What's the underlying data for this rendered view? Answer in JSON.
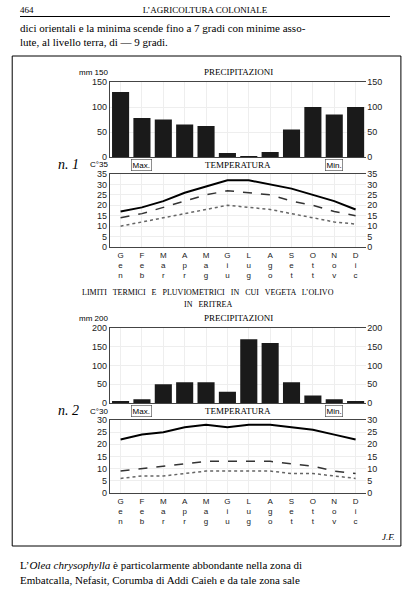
{
  "annotations": [
    "464",
    "L’AGRICOLTURA COLONIALE",
    "dici orientali e la minima scende fino a 7 gradi con minime asso-\nlute, al livello terra, di — 9 gradi.",
    "LIMITI   TERMICI   E   PLUVIOMETRICI   IN   CUI   VEGETA   L’OLIVO",
    "IN   ERITREA",
    "J.F.",
    "L’",
    "Olea chrysophylla",
    " è particolarmente abbondante nella zona di",
    "Embatcalla, Nefasit, Corumba di Addi Caieh e da tale zona sale"
  ],
  "chart_data": [
    {
      "type": "bar",
      "title": "PRECIPITAZIONI",
      "annotations": [
        "n. 1",
        "mm 150"
      ],
      "categories": [
        "G\ne\nn",
        "F\ne\nb",
        "M\na\nr",
        "A\np\nr",
        "M\na\ng",
        "G\ni\nu",
        "L\nu\ng",
        "A\ng\no",
        "S\ne\nt",
        "O\nt\nt",
        "N\no\nv",
        "D\ni\nc"
      ],
      "values": [
        130,
        78,
        75,
        65,
        62,
        8,
        2,
        10,
        55,
        100,
        85,
        100
      ],
      "color": "#1a1a1a",
      "ylim": [
        0,
        150
      ],
      "yticks": [
        0,
        50,
        100,
        150
      ],
      "y2lim": [
        0,
        150
      ],
      "y2ticks": [
        0,
        50,
        100,
        150
      ],
      "grid": true,
      "tick_labels": "y"
    },
    {
      "type": "line",
      "title": "TEMPERATURA",
      "annotations": [
        "Max.",
        "Min.",
        "C°35"
      ],
      "categories": [
        "G\ne\nn",
        "F\ne\nb",
        "M\na\nr",
        "A\np\nr",
        "M\na\ng",
        "G\ni\nu",
        "L\nu\ng",
        "A\ng\no",
        "S\ne\nt",
        "O\nt\nt",
        "N\no\nv",
        "D\ni\nc"
      ],
      "series": [
        {
          "color": "#000000",
          "line_style": "solid",
          "values": [
            17,
            19,
            22,
            26,
            29,
            32,
            32,
            30,
            28,
            25,
            22,
            18
          ]
        },
        {
          "color": "#333333",
          "line_style": "dashed",
          "values": [
            14,
            16,
            19,
            22,
            25,
            27,
            26,
            25,
            22,
            20,
            17,
            15
          ]
        },
        {
          "color": "#666666",
          "line_style": "dotted",
          "values": [
            10,
            12,
            14,
            16,
            18,
            20,
            19,
            18,
            16,
            14,
            12,
            11
          ]
        }
      ],
      "ylim": [
        0,
        35
      ],
      "yticks": [
        0,
        5,
        10,
        15,
        20,
        25,
        30,
        35
      ],
      "y2lim": [
        0,
        35
      ],
      "y2ticks": [
        0,
        5,
        10,
        15,
        20,
        25,
        30,
        35
      ],
      "grid": true
    },
    {
      "type": "bar",
      "title": "PRECIPITAZIONI",
      "annotations": [
        "n. 2",
        "mm 200"
      ],
      "categories": [
        "G\ne\nn",
        "F\ne\nb",
        "M\na\nr",
        "A\np\nr",
        "M\na\ng",
        "G\ni\nu",
        "L\nu\ng",
        "A\ng\no",
        "S\ne\nt",
        "O\nt\nt",
        "N\no\nv",
        "D\ni\nc"
      ],
      "values": [
        5,
        10,
        50,
        55,
        55,
        30,
        170,
        160,
        55,
        20,
        10,
        5
      ],
      "color": "#1a1a1a",
      "ylim": [
        0,
        200
      ],
      "yticks": [
        0,
        50,
        100,
        150,
        200
      ],
      "y2lim": [
        0,
        200
      ],
      "y2ticks": [
        0,
        50,
        100,
        150,
        200
      ],
      "grid": true,
      "tick_labels": "y"
    },
    {
      "type": "line",
      "title": "TEMPERATURA",
      "annotations": [
        "Max.",
        "Min.",
        "C°30"
      ],
      "categories": [
        "G\ne\nn",
        "F\ne\nb",
        "M\na\nr",
        "A\np\nr",
        "M\na\ng",
        "G\ni\nu",
        "L\nu\ng",
        "A\ng\no",
        "S\ne\nt",
        "O\nt\nt",
        "N\no\nv",
        "D\ni\nc"
      ],
      "series": [
        {
          "color": "#000000",
          "line_style": "solid",
          "values": [
            22,
            24,
            25,
            27,
            28,
            27,
            28,
            28,
            27,
            26,
            24,
            22
          ]
        },
        {
          "color": "#333333",
          "line_style": "dashed",
          "values": [
            9,
            10,
            11,
            12,
            13,
            13,
            13,
            13,
            12,
            11,
            9,
            8
          ]
        },
        {
          "color": "#666666",
          "line_style": "dotted",
          "values": [
            6,
            7,
            7,
            8,
            9,
            9,
            9,
            9,
            8,
            8,
            7,
            6
          ]
        }
      ],
      "ylim": [
        0,
        30
      ],
      "yticks": [
        0,
        5,
        10,
        15,
        20,
        25,
        30
      ],
      "y2lim": [
        0,
        30
      ],
      "y2ticks": [
        0,
        5,
        10,
        15,
        20,
        25,
        30
      ],
      "grid": true
    }
  ]
}
